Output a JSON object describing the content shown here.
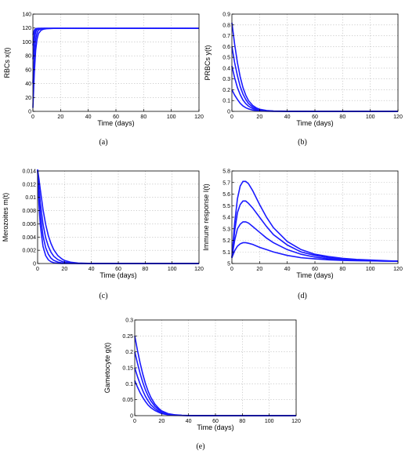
{
  "chart_data": [
    {
      "type": "line",
      "caption": "(a)",
      "xlabel": "Time (days)",
      "ylabel": "RBCs x(t)",
      "xlim": [
        0,
        120
      ],
      "ylim": [
        0,
        140
      ],
      "xticks": [
        0,
        20,
        40,
        60,
        80,
        100,
        120
      ],
      "yticks": [
        0,
        20,
        40,
        60,
        80,
        100,
        120,
        140
      ],
      "tick_labels_x": [
        "0",
        "20",
        "40",
        "60",
        "80",
        "100",
        "120"
      ],
      "tick_labels_y": [
        "0",
        "20",
        "40",
        "60",
        "80",
        "100",
        "120",
        "140"
      ],
      "grid": true,
      "series": [
        {
          "x": [
            0,
            1,
            2,
            3,
            4,
            6,
            8,
            10,
            15,
            20,
            40,
            60,
            80,
            100,
            120
          ],
          "y": [
            5,
            55,
            88,
            104,
            112,
            117,
            118.5,
            119,
            119.5,
            119.5,
            119.5,
            119.5,
            119.5,
            119.5,
            119.5
          ]
        },
        {
          "x": [
            0,
            1,
            2,
            3,
            4,
            6,
            8,
            10,
            15,
            20,
            40,
            60,
            80,
            100,
            120
          ],
          "y": [
            40,
            82,
            104,
            113,
            117,
            119,
            119.5,
            119.5,
            119.5,
            119.5,
            119.5,
            119.5,
            119.5,
            119.5,
            119.5
          ]
        },
        {
          "x": [
            0,
            1,
            2,
            3,
            4,
            6,
            8,
            10,
            15,
            20,
            40,
            60,
            80,
            100,
            120
          ],
          "y": [
            75,
            103,
            114,
            118,
            119,
            119.5,
            119.5,
            119.5,
            119.5,
            119.5,
            119.5,
            119.5,
            119.5,
            119.5,
            119.5
          ]
        },
        {
          "x": [
            0,
            1,
            2,
            3,
            4,
            6,
            8,
            10,
            15,
            20,
            40,
            60,
            80,
            100,
            120
          ],
          "y": [
            95,
            112,
            117,
            119,
            119.5,
            119.5,
            119.5,
            119.5,
            119.5,
            119.5,
            119.5,
            119.5,
            119.5,
            119.5,
            119.5
          ]
        },
        {
          "x": [
            0,
            1,
            2,
            3,
            4,
            6,
            8,
            10,
            15,
            20,
            40,
            60,
            80,
            100,
            120
          ],
          "y": [
            110,
            117,
            119,
            119.5,
            119.5,
            119.5,
            119.5,
            119.5,
            119.5,
            119.5,
            119.5,
            119.5,
            119.5,
            119.5,
            119.5
          ]
        }
      ]
    },
    {
      "type": "line",
      "caption": "(b)",
      "xlabel": "Time (days)",
      "ylabel": "PRBCs y(t)",
      "xlim": [
        0,
        120
      ],
      "ylim": [
        0,
        0.9
      ],
      "xticks": [
        0,
        20,
        40,
        60,
        80,
        100,
        120
      ],
      "yticks": [
        0,
        0.1,
        0.2,
        0.3,
        0.4,
        0.5,
        0.6,
        0.7,
        0.8,
        0.9
      ],
      "tick_labels_x": [
        "0",
        "20",
        "40",
        "60",
        "80",
        "100",
        "120"
      ],
      "tick_labels_y": [
        "0",
        "0.1",
        "0.2",
        "0.3",
        "0.4",
        "0.5",
        "0.6",
        "0.7",
        "0.8",
        "0.9"
      ],
      "grid": true,
      "series": [
        {
          "x": [
            0,
            2,
            4,
            6,
            8,
            10,
            12,
            15,
            18,
            20,
            25,
            30,
            40,
            60,
            80,
            100,
            120
          ],
          "y": [
            0.82,
            0.62,
            0.45,
            0.32,
            0.22,
            0.15,
            0.1,
            0.055,
            0.03,
            0.02,
            0.008,
            0.003,
            0.001,
            0,
            0,
            0,
            0
          ]
        },
        {
          "x": [
            0,
            2,
            4,
            6,
            8,
            10,
            12,
            15,
            18,
            20,
            25,
            30,
            40,
            60,
            80,
            100,
            120
          ],
          "y": [
            0.6,
            0.45,
            0.33,
            0.23,
            0.16,
            0.11,
            0.073,
            0.04,
            0.022,
            0.015,
            0.006,
            0.002,
            0.0005,
            0,
            0,
            0,
            0
          ]
        },
        {
          "x": [
            0,
            2,
            4,
            6,
            8,
            10,
            12,
            15,
            18,
            20,
            25,
            30,
            40,
            60,
            80,
            100,
            120
          ],
          "y": [
            0.42,
            0.31,
            0.22,
            0.155,
            0.105,
            0.072,
            0.048,
            0.026,
            0.014,
            0.009,
            0.003,
            0.001,
            0,
            0,
            0,
            0,
            0
          ]
        },
        {
          "x": [
            0,
            2,
            4,
            6,
            8,
            10,
            12,
            15,
            18,
            20,
            25,
            30,
            40,
            60,
            80,
            100,
            120
          ],
          "y": [
            0.2,
            0.15,
            0.11,
            0.075,
            0.05,
            0.034,
            0.023,
            0.012,
            0.007,
            0.004,
            0.0015,
            0.0005,
            0,
            0,
            0,
            0,
            0
          ]
        }
      ]
    },
    {
      "type": "line",
      "caption": "(c)",
      "xlabel": "Time (days)",
      "ylabel": "Merozoites m(t)",
      "xlim": [
        0,
        120
      ],
      "ylim": [
        0,
        0.014
      ],
      "xticks": [
        0,
        20,
        40,
        60,
        80,
        100,
        120
      ],
      "yticks": [
        0,
        0.002,
        0.004,
        0.006,
        0.008,
        0.01,
        0.012,
        0.014
      ],
      "tick_labels_x": [
        "0",
        "20",
        "40",
        "60",
        "80",
        "100",
        "120"
      ],
      "tick_labels_y": [
        "0",
        "0.002",
        "0.004",
        "0.006",
        "0.008",
        "0.01",
        "0.012",
        "0.014"
      ],
      "grid": true,
      "series": [
        {
          "x": [
            0,
            1,
            2,
            4,
            6,
            8,
            10,
            12,
            15,
            18,
            20,
            25,
            30,
            40,
            60,
            80,
            100,
            120
          ],
          "y": [
            0.0142,
            0.0128,
            0.0112,
            0.0082,
            0.0059,
            0.0042,
            0.003,
            0.0021,
            0.0012,
            0.0007,
            0.00045,
            0.00018,
            7e-05,
            1e-05,
            0,
            0,
            0,
            0
          ]
        },
        {
          "x": [
            0,
            1,
            2,
            4,
            6,
            8,
            10,
            12,
            15,
            18,
            20,
            25,
            30,
            40,
            60,
            80,
            100,
            120
          ],
          "y": [
            0.0142,
            0.0115,
            0.0092,
            0.006,
            0.0039,
            0.0026,
            0.0017,
            0.0011,
            0.0006,
            0.00033,
            0.0002,
            7e-05,
            2e-05,
            0,
            0,
            0,
            0,
            0
          ]
        },
        {
          "x": [
            0,
            1,
            2,
            4,
            6,
            8,
            10,
            12,
            15,
            18,
            20,
            25,
            30,
            40,
            60,
            80,
            100,
            120
          ],
          "y": [
            0.0142,
            0.0103,
            0.0075,
            0.0042,
            0.0024,
            0.0014,
            0.0008,
            0.00048,
            0.00022,
            0.0001,
            6e-05,
            2e-05,
            0,
            0,
            0,
            0,
            0,
            0
          ]
        },
        {
          "x": [
            0,
            1,
            2,
            4,
            6,
            8,
            10,
            12,
            15,
            18,
            20,
            25,
            30,
            40,
            60,
            80,
            100,
            120
          ],
          "y": [
            0.0142,
            0.009,
            0.0058,
            0.0026,
            0.0012,
            0.00055,
            0.00026,
            0.00012,
            4e-05,
            1e-05,
            0,
            0,
            0,
            0,
            0,
            0,
            0,
            0
          ]
        }
      ]
    },
    {
      "type": "line",
      "caption": "(d)",
      "xlabel": "Time (days)",
      "ylabel": "Immune response I(t)",
      "xlim": [
        0,
        120
      ],
      "ylim": [
        5,
        5.8
      ],
      "xticks": [
        0,
        20,
        40,
        60,
        80,
        100,
        120
      ],
      "yticks": [
        5,
        5.1,
        5.2,
        5.3,
        5.4,
        5.5,
        5.6,
        5.7,
        5.8
      ],
      "tick_labels_x": [
        "0",
        "20",
        "40",
        "60",
        "80",
        "100",
        "120"
      ],
      "tick_labels_y": [
        "5",
        "5.1",
        "5.2",
        "5.3",
        "5.4",
        "5.5",
        "5.6",
        "5.7",
        "5.8"
      ],
      "grid": true,
      "series": [
        {
          "x": [
            0,
            2,
            4,
            6,
            8,
            10,
            12,
            15,
            20,
            25,
            30,
            40,
            50,
            60,
            70,
            80,
            90,
            100,
            110,
            120
          ],
          "y": [
            5.05,
            5.35,
            5.56,
            5.67,
            5.71,
            5.71,
            5.69,
            5.63,
            5.51,
            5.4,
            5.31,
            5.19,
            5.12,
            5.08,
            5.06,
            5.045,
            5.035,
            5.03,
            5.025,
            5.02
          ]
        },
        {
          "x": [
            0,
            2,
            4,
            6,
            8,
            10,
            12,
            15,
            20,
            25,
            30,
            40,
            50,
            60,
            70,
            80,
            90,
            100,
            110,
            120
          ],
          "y": [
            5.05,
            5.28,
            5.44,
            5.51,
            5.54,
            5.54,
            5.52,
            5.48,
            5.4,
            5.32,
            5.25,
            5.16,
            5.1,
            5.07,
            5.05,
            5.04,
            5.03,
            5.025,
            5.022,
            5.02
          ]
        },
        {
          "x": [
            0,
            2,
            4,
            6,
            8,
            10,
            12,
            15,
            20,
            25,
            30,
            40,
            50,
            60,
            70,
            80,
            90,
            100,
            110,
            120
          ],
          "y": [
            5.05,
            5.2,
            5.3,
            5.34,
            5.36,
            5.36,
            5.35,
            5.32,
            5.27,
            5.22,
            5.18,
            5.12,
            5.08,
            5.055,
            5.04,
            5.033,
            5.028,
            5.024,
            5.021,
            5.02
          ]
        },
        {
          "x": [
            0,
            2,
            4,
            6,
            8,
            10,
            12,
            15,
            20,
            25,
            30,
            40,
            50,
            60,
            70,
            80,
            90,
            100,
            110,
            120
          ],
          "y": [
            5.05,
            5.11,
            5.15,
            5.17,
            5.18,
            5.18,
            5.175,
            5.165,
            5.14,
            5.12,
            5.1,
            5.07,
            5.05,
            5.04,
            5.032,
            5.027,
            5.024,
            5.022,
            5.021,
            5.02
          ]
        }
      ]
    },
    {
      "type": "line",
      "caption": "(e)",
      "xlabel": "Time (days)",
      "ylabel": "Gametocyte g(t)",
      "xlim": [
        0,
        120
      ],
      "ylim": [
        0,
        0.3
      ],
      "xticks": [
        0,
        20,
        40,
        60,
        80,
        100,
        120
      ],
      "yticks": [
        0,
        0.05,
        0.1,
        0.15,
        0.2,
        0.25,
        0.3
      ],
      "tick_labels_x": [
        "0",
        "20",
        "40",
        "60",
        "80",
        "100",
        "120"
      ],
      "tick_labels_y": [
        "0",
        "0.05",
        "0.1",
        "0.15",
        "0.2",
        "0.25",
        "0.3"
      ],
      "grid": true,
      "series": [
        {
          "x": [
            0,
            2,
            4,
            6,
            8,
            10,
            12,
            15,
            18,
            20,
            25,
            30,
            35,
            40,
            60,
            80,
            100,
            120
          ],
          "y": [
            0.25,
            0.205,
            0.165,
            0.13,
            0.1,
            0.076,
            0.057,
            0.036,
            0.022,
            0.015,
            0.006,
            0.0025,
            0.001,
            0.0004,
            0,
            0,
            0,
            0
          ]
        },
        {
          "x": [
            0,
            2,
            4,
            6,
            8,
            10,
            12,
            15,
            18,
            20,
            25,
            30,
            35,
            40,
            60,
            80,
            100,
            120
          ],
          "y": [
            0.2,
            0.165,
            0.132,
            0.104,
            0.08,
            0.061,
            0.046,
            0.029,
            0.018,
            0.012,
            0.005,
            0.002,
            0.0008,
            0.0003,
            0,
            0,
            0,
            0
          ]
        },
        {
          "x": [
            0,
            2,
            4,
            6,
            8,
            10,
            12,
            15,
            18,
            20,
            25,
            30,
            35,
            40,
            60,
            80,
            100,
            120
          ],
          "y": [
            0.15,
            0.123,
            0.099,
            0.078,
            0.06,
            0.046,
            0.034,
            0.022,
            0.013,
            0.009,
            0.0035,
            0.0015,
            0.0006,
            0.0002,
            0,
            0,
            0,
            0
          ]
        },
        {
          "x": [
            0,
            2,
            4,
            6,
            8,
            10,
            12,
            15,
            18,
            20,
            25,
            30,
            35,
            40,
            60,
            80,
            100,
            120
          ],
          "y": [
            0.11,
            0.09,
            0.072,
            0.057,
            0.044,
            0.033,
            0.025,
            0.016,
            0.01,
            0.0065,
            0.0025,
            0.001,
            0.0004,
            0.0001,
            0,
            0,
            0,
            0
          ]
        }
      ]
    }
  ]
}
